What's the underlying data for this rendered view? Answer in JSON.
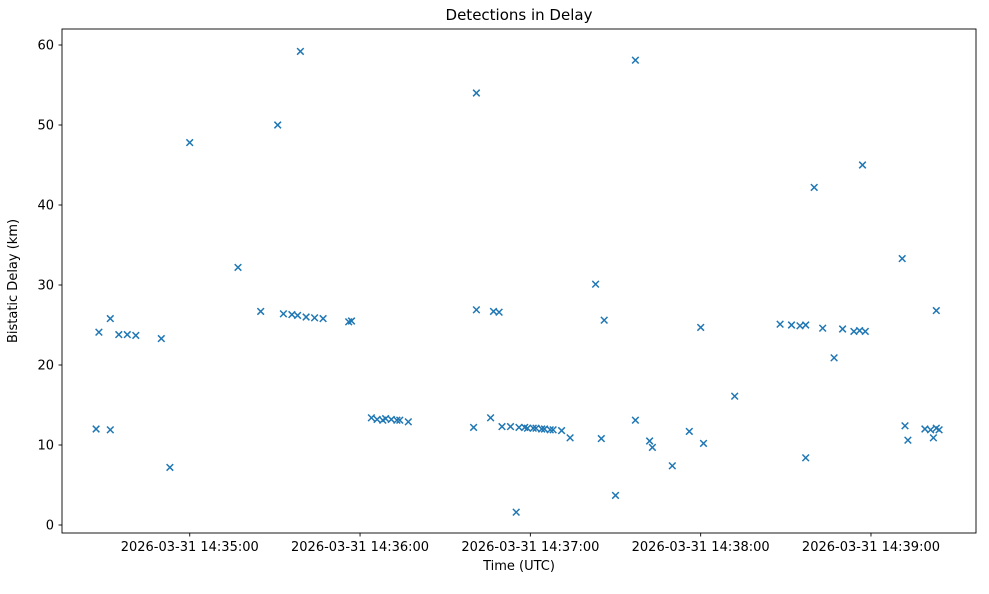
{
  "chart_data": {
    "type": "scatter",
    "title": "Detections in Delay",
    "xlabel": "Time (UTC)",
    "ylabel": "Bistatic Delay (km)",
    "marker": "x",
    "marker_color": "#1f77b4",
    "background_color": "#ffffff",
    "grid": false,
    "legend": false,
    "ylim": [
      -1,
      62
    ],
    "y_ticks": [
      0,
      10,
      20,
      30,
      40,
      50,
      60
    ],
    "xlim": [
      "14:34:15",
      "14:39:37"
    ],
    "x_ticks": [
      "14:35:00",
      "14:36:00",
      "14:37:00",
      "14:38:00",
      "14:39:00"
    ],
    "x_tick_labels": [
      "2026-03-31 14:35:00",
      "2026-03-31 14:36:00",
      "2026-03-31 14:37:00",
      "2026-03-31 14:38:00",
      "2026-03-31 14:39:00"
    ],
    "points": [
      [
        "14:34:27",
        12.0
      ],
      [
        "14:34:28",
        24.1
      ],
      [
        "14:34:32",
        11.9
      ],
      [
        "14:34:32",
        25.8
      ],
      [
        "14:34:35",
        23.8
      ],
      [
        "14:34:38",
        23.8
      ],
      [
        "14:34:41",
        23.7
      ],
      [
        "14:34:50",
        23.3
      ],
      [
        "14:34:53",
        7.2
      ],
      [
        "14:35:00",
        47.8
      ],
      [
        "14:35:17",
        32.2
      ],
      [
        "14:35:25",
        26.7
      ],
      [
        "14:35:31",
        50.0
      ],
      [
        "14:35:33",
        26.4
      ],
      [
        "14:35:36",
        26.3
      ],
      [
        "14:35:38",
        26.2
      ],
      [
        "14:35:39",
        59.2
      ],
      [
        "14:35:41",
        26.0
      ],
      [
        "14:35:44",
        25.9
      ],
      [
        "14:35:47",
        25.8
      ],
      [
        "14:35:56",
        25.4
      ],
      [
        "14:35:57",
        25.5
      ],
      [
        "14:36:04",
        13.4
      ],
      [
        "14:36:06",
        13.2
      ],
      [
        "14:36:08",
        13.1
      ],
      [
        "14:36:09",
        13.3
      ],
      [
        "14:36:11",
        13.2
      ],
      [
        "14:36:13",
        13.1
      ],
      [
        "14:36:14",
        13.1
      ],
      [
        "14:36:17",
        12.9
      ],
      [
        "14:36:40",
        12.2
      ],
      [
        "14:36:41",
        54.0
      ],
      [
        "14:36:41",
        26.9
      ],
      [
        "14:36:46",
        13.4
      ],
      [
        "14:36:47",
        26.7
      ],
      [
        "14:36:49",
        26.6
      ],
      [
        "14:36:50",
        12.3
      ],
      [
        "14:36:53",
        12.3
      ],
      [
        "14:36:55",
        1.6
      ],
      [
        "14:36:56",
        12.2
      ],
      [
        "14:36:58",
        12.2
      ],
      [
        "14:36:59",
        12.1
      ],
      [
        "14:37:01",
        12.1
      ],
      [
        "14:37:02",
        12.1
      ],
      [
        "14:37:04",
        12.0
      ],
      [
        "14:37:05",
        12.0
      ],
      [
        "14:37:07",
        11.9
      ],
      [
        "14:37:08",
        11.9
      ],
      [
        "14:37:11",
        11.8
      ],
      [
        "14:37:14",
        10.9
      ],
      [
        "14:37:23",
        30.1
      ],
      [
        "14:37:25",
        10.8
      ],
      [
        "14:37:26",
        25.6
      ],
      [
        "14:37:30",
        3.7
      ],
      [
        "14:37:37",
        13.1
      ],
      [
        "14:37:37",
        58.1
      ],
      [
        "14:37:42",
        10.5
      ],
      [
        "14:37:43",
        9.7
      ],
      [
        "14:37:50",
        7.4
      ],
      [
        "14:37:56",
        11.7
      ],
      [
        "14:38:00",
        24.7
      ],
      [
        "14:38:01",
        10.2
      ],
      [
        "14:38:12",
        16.1
      ],
      [
        "14:38:28",
        25.1
      ],
      [
        "14:38:32",
        25.0
      ],
      [
        "14:38:35",
        24.9
      ],
      [
        "14:38:37",
        25.0
      ],
      [
        "14:38:37",
        8.4
      ],
      [
        "14:38:40",
        42.2
      ],
      [
        "14:38:43",
        24.6
      ],
      [
        "14:38:47",
        20.9
      ],
      [
        "14:38:50",
        24.5
      ],
      [
        "14:38:54",
        24.2
      ],
      [
        "14:38:56",
        24.3
      ],
      [
        "14:38:57",
        45.0
      ],
      [
        "14:38:58",
        24.2
      ],
      [
        "14:39:11",
        33.3
      ],
      [
        "14:39:12",
        12.4
      ],
      [
        "14:39:13",
        10.6
      ],
      [
        "14:39:19",
        12.0
      ],
      [
        "14:39:21",
        11.9
      ],
      [
        "14:39:22",
        10.9
      ],
      [
        "14:39:23",
        12.1
      ],
      [
        "14:39:23",
        26.8
      ],
      [
        "14:39:24",
        11.9
      ]
    ]
  }
}
